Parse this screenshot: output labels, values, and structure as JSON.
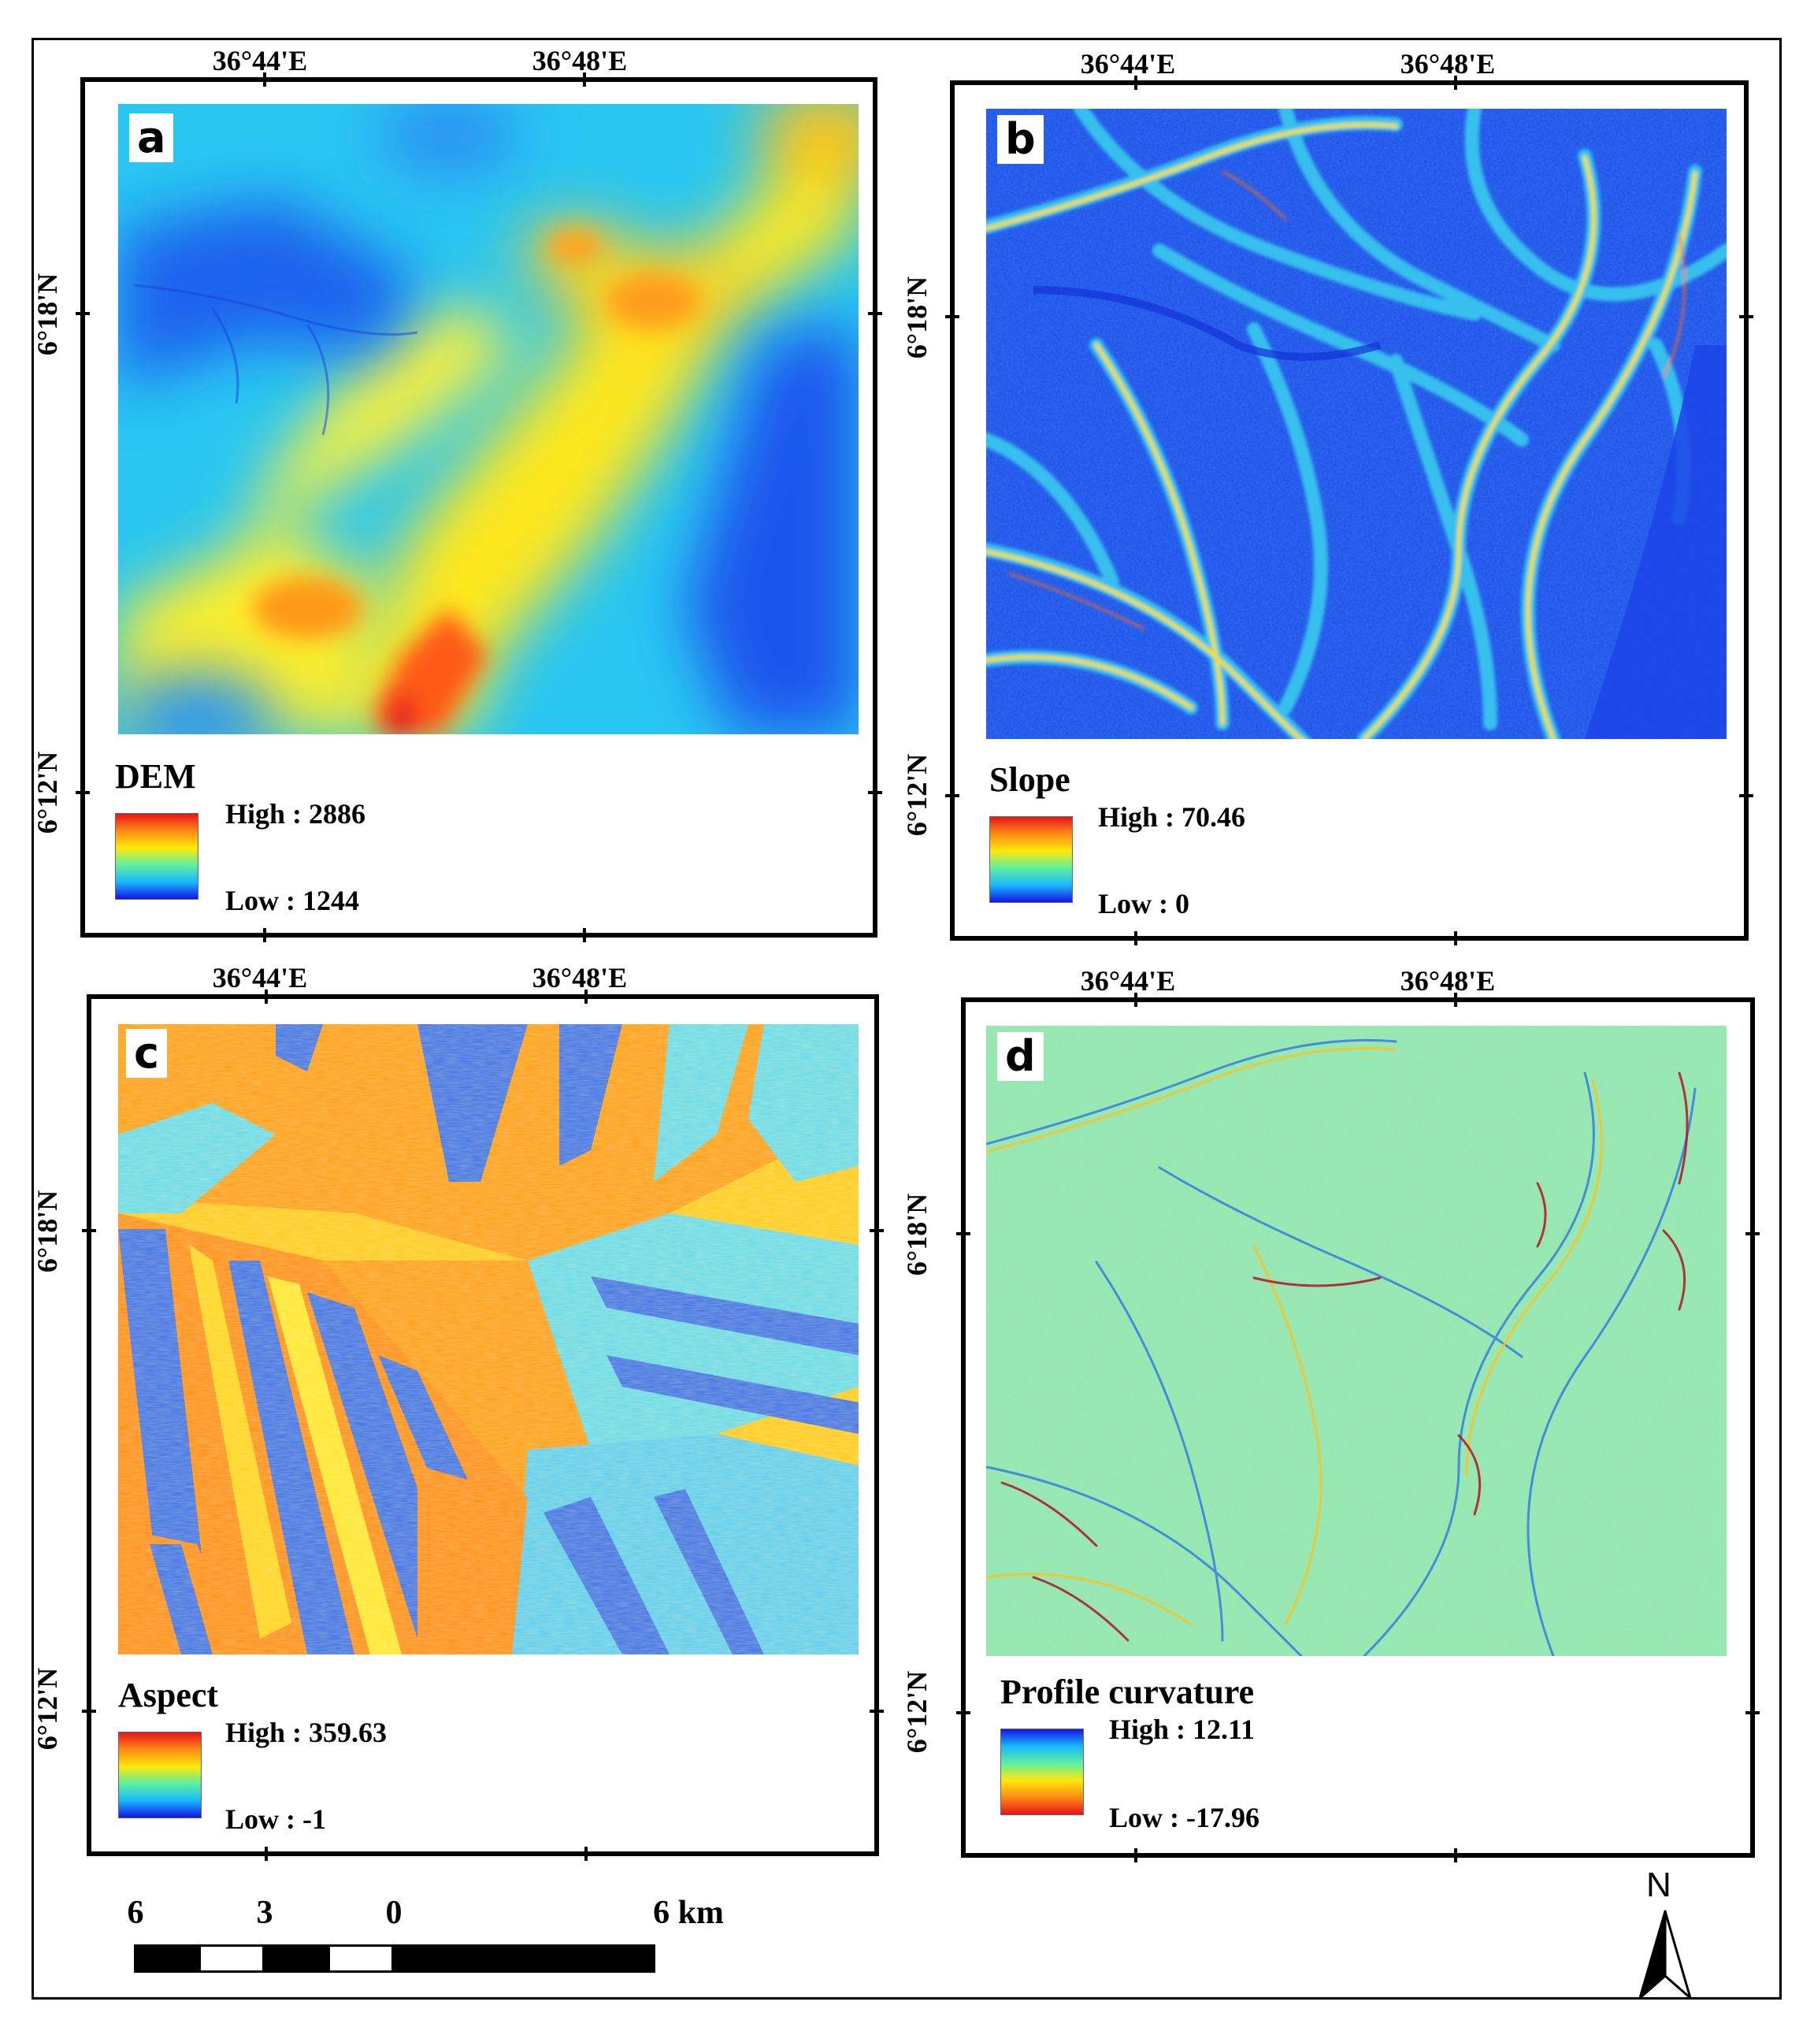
{
  "coords": {
    "lon_1": "36°44'E",
    "lon_2": "36°48'E",
    "lat_1": "6°18'N",
    "lat_2": "6°12'N"
  },
  "panels": {
    "a": {
      "letter": "a",
      "title": "DEM",
      "high": "High : 2886",
      "low": "Low : 1244"
    },
    "b": {
      "letter": "b",
      "title": "Slope",
      "high": "High : 70.46",
      "low": "Low : 0"
    },
    "c": {
      "letter": "c",
      "title": "Aspect",
      "high": "High : 359.63",
      "low": "Low : -1"
    },
    "d": {
      "letter": "d",
      "title": "Profile curvature",
      "high": "High : 12.11",
      "low": "Low : -17.96"
    }
  },
  "colors": {
    "ramp_high": "#e8131a",
    "ramp_mid_high": "#ffe80a",
    "ramp_mid": "#5ef0a0",
    "ramp_mid_low": "#19b9ff",
    "ramp_low": "#1414e6"
  },
  "scalebar": {
    "labels": [
      "6",
      "3",
      "0",
      "6 km"
    ]
  },
  "north_arrow": {
    "letter": "N",
    "icon": "north-arrow-icon"
  }
}
